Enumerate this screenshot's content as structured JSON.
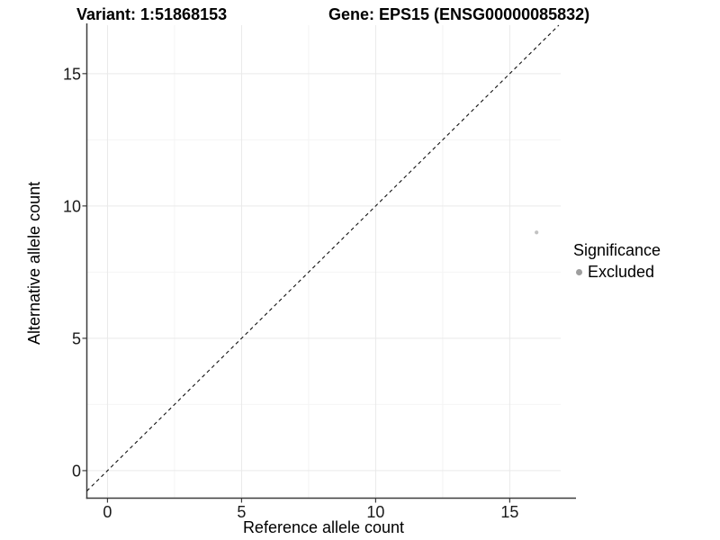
{
  "header": {
    "variant_title": "Variant: 1:51868153",
    "gene_title": "Gene: EPS15 (ENSG00000085832)"
  },
  "chart_data": {
    "type": "scatter",
    "xlabel": "Reference allele count",
    "ylabel": "Alternative allele count",
    "x_ticks": [
      0,
      5,
      10,
      15
    ],
    "y_ticks": [
      0,
      5,
      10,
      15
    ],
    "x_minor_ticks": [
      2.5,
      7.5,
      12.5
    ],
    "y_minor_ticks": [
      2.5,
      7.5,
      12.5
    ],
    "xlim": [
      -0.77,
      16.9
    ],
    "ylim": [
      -1.04,
      16.83
    ],
    "grid": true,
    "points": [
      {
        "x": 16,
        "y": 9,
        "series": "Excluded"
      }
    ],
    "identity_line": {
      "slope": 1,
      "intercept": 0,
      "style": "dashed",
      "color": "#111111"
    },
    "point_color": "#c2c2c2",
    "point_radius_px": 2.1,
    "legend": {
      "title": "Significance",
      "position": "right",
      "items": [
        {
          "label": "Excluded",
          "color": "#9e9e9e"
        }
      ]
    },
    "colors": {
      "axis_line": "#3c3c3c",
      "major_grid": "#e9e9e9",
      "minor_grid": "#f4f4f4",
      "tick_label": "#1a1a1a"
    }
  }
}
